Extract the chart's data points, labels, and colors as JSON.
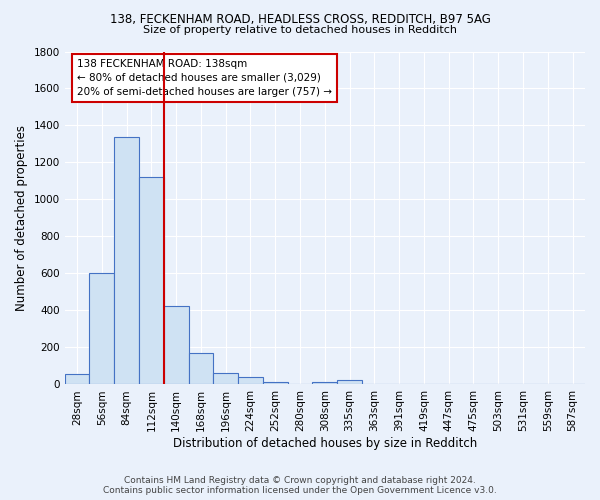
{
  "title_line1": "138, FECKENHAM ROAD, HEADLESS CROSS, REDDITCH, B97 5AG",
  "title_line2": "Size of property relative to detached houses in Redditch",
  "xlabel": "Distribution of detached houses by size in Redditch",
  "ylabel": "Number of detached properties",
  "footer_line1": "Contains HM Land Registry data © Crown copyright and database right 2024.",
  "footer_line2": "Contains public sector information licensed under the Open Government Licence v3.0.",
  "bin_labels": [
    "28sqm",
    "56sqm",
    "84sqm",
    "112sqm",
    "140sqm",
    "168sqm",
    "196sqm",
    "224sqm",
    "252sqm",
    "280sqm",
    "308sqm",
    "335sqm",
    "363sqm",
    "391sqm",
    "419sqm",
    "447sqm",
    "475sqm",
    "503sqm",
    "531sqm",
    "559sqm",
    "587sqm"
  ],
  "bin_values": [
    55,
    600,
    1340,
    1120,
    425,
    170,
    60,
    38,
    12,
    0,
    15,
    22,
    0,
    0,
    0,
    0,
    0,
    0,
    0,
    0,
    0
  ],
  "bar_color": "#cfe2f3",
  "bar_edge_color": "#4472c4",
  "bg_color": "#eaf1fb",
  "grid_color": "#ffffff",
  "vline_color": "#cc0000",
  "annotation_text": "138 FECKENHAM ROAD: 138sqm\n← 80% of detached houses are smaller (3,029)\n20% of semi-detached houses are larger (757) →",
  "annotation_box_color": "#cc0000",
  "ylim": [
    0,
    1800
  ],
  "yticks": [
    0,
    200,
    400,
    600,
    800,
    1000,
    1200,
    1400,
    1600,
    1800
  ]
}
